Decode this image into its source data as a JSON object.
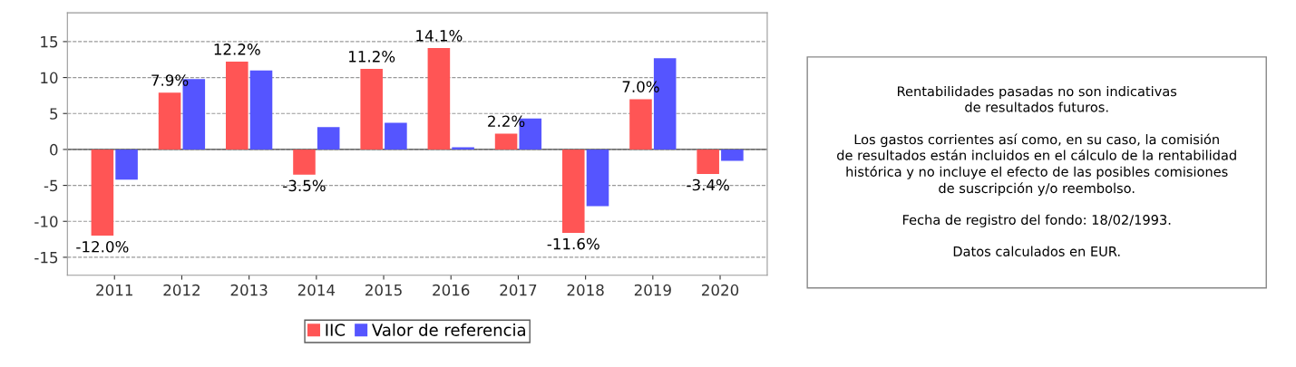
{
  "chart_data": {
    "type": "bar",
    "categories": [
      "2011",
      "2012",
      "2013",
      "2014",
      "2015",
      "2016",
      "2017",
      "2018",
      "2019",
      "2020"
    ],
    "series": [
      {
        "name": "IIC",
        "color": "#ff5555",
        "values": [
          -12.0,
          7.9,
          12.2,
          -3.5,
          11.2,
          14.1,
          2.2,
          -11.6,
          7.0,
          -3.4
        ],
        "value_labels": [
          "-12.0%",
          "7.9%",
          "12.2%",
          "-3.5%",
          "11.2%",
          "14.1%",
          "2.2%",
          "-11.6%",
          "7.0%",
          "-3.4%"
        ]
      },
      {
        "name": "Valor de referencia",
        "color": "#5555ff",
        "values": [
          -4.2,
          9.8,
          11.0,
          3.1,
          3.7,
          0.3,
          4.3,
          -7.9,
          12.7,
          -1.6
        ]
      }
    ],
    "ylim": [
      -17.5,
      19
    ],
    "yticks": [
      -15,
      -10,
      -5,
      0,
      5,
      10,
      15
    ],
    "grid": "y",
    "legend": "bottom",
    "annotations": [
      "Rentabilidades pasadas no son indicativas\nde resultados futuros.\n\nLos gastos corrientes así como, en su caso, la comisión\nde resultados están incluidos en el cálculo de la rentabilidad\nhistórica y no incluye el efecto de las posibles comisiones\nde suscripción y/o reembolso.\n\nFecha de registro del fondo: 18/02/1993.\n\nDatos calculados en EUR."
    ]
  }
}
